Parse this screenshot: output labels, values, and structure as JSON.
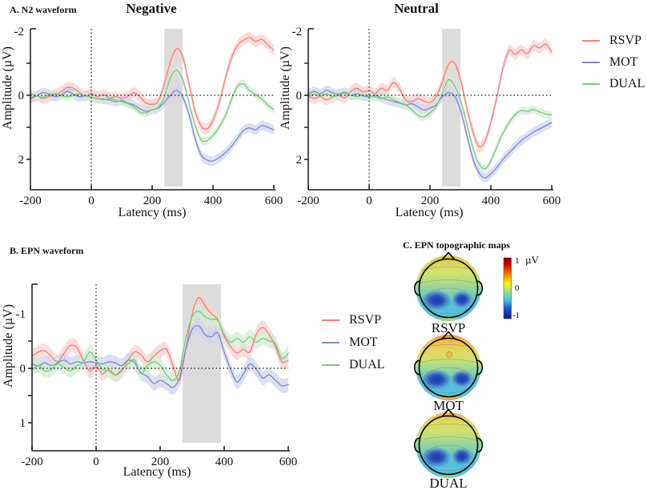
{
  "panel_a": {
    "label": "A. N2 waveform",
    "negative_title": "Negative",
    "neutral_title": "Neutral",
    "ylabel": "Amplitude (µV)",
    "xlabel": "Latency (ms)"
  },
  "panel_b": {
    "label": "B. EPN waveform",
    "ylabel": "Amplitude (µV)",
    "xlabel": "Latency (ms)"
  },
  "panel_c": {
    "label": "C. EPN topographic maps",
    "maps": [
      "RSVP",
      "MOT",
      "DUAL"
    ],
    "colorbar": {
      "max_label": "1",
      "zero_label": "0",
      "min_label": "-1",
      "unit": "µV"
    }
  },
  "legend": {
    "entries": [
      {
        "label": "RSVP",
        "color": "#ee8181"
      },
      {
        "label": "MOT",
        "color": "#7f89c5"
      },
      {
        "label": "DUAL",
        "color": "#83c383"
      }
    ]
  },
  "colors": {
    "axis": "#1a1a1a",
    "shade": "#dcdcdc",
    "series_styles": {
      "RSVP": {
        "line": "#ee8181",
        "band": "#f9d0d0"
      },
      "MOT": {
        "line": "#7f89c5",
        "band": "#d0d4ee"
      },
      "DUAL": {
        "line": "#83c383",
        "band": "#d3ecd3"
      }
    }
  },
  "chart_data": [
    {
      "type": "line",
      "title": "Negative",
      "xlabel": "Latency (ms)",
      "ylabel": "Amplitude (µV)",
      "x_ticks": [
        -200,
        0,
        200,
        400,
        600
      ],
      "y_ticks": [
        -2,
        0,
        2
      ],
      "y_minor_ticks": [
        -1,
        1
      ],
      "xlim": [
        -200,
        600
      ],
      "ylim": [
        -2,
        2
      ],
      "y_axis_inverted": true,
      "shade_ms": [
        240,
        300
      ],
      "x_ms": [
        -200,
        -180,
        -160,
        -140,
        -120,
        -100,
        -80,
        -60,
        -40,
        -20,
        0,
        20,
        40,
        60,
        80,
        100,
        120,
        140,
        160,
        180,
        200,
        220,
        240,
        260,
        280,
        300,
        320,
        340,
        360,
        380,
        400,
        420,
        440,
        460,
        480,
        500,
        520,
        540,
        560,
        580,
        600
      ],
      "series": [
        {
          "name": "RSVP",
          "sem": 0.17,
          "values": [
            0.08,
            0.02,
            0.1,
            0.05,
            -0.02,
            -0.1,
            -0.24,
            -0.22,
            -0.1,
            0.02,
            -0.05,
            0.04,
            -0.02,
            0.08,
            0.04,
            0.1,
            0.03,
            -0.08,
            0.06,
            0.24,
            0.28,
            0.18,
            -0.35,
            -1.05,
            -1.45,
            -1.22,
            -0.4,
            0.45,
            0.95,
            1.05,
            0.78,
            0.25,
            -0.5,
            -1.15,
            -1.55,
            -1.72,
            -1.8,
            -1.68,
            -1.75,
            -1.58,
            -1.4
          ]
        },
        {
          "name": "MOT",
          "sem": 0.15,
          "values": [
            0.1,
            0.02,
            -0.08,
            -0.04,
            0.04,
            0.0,
            -0.12,
            -0.04,
            0.05,
            0.02,
            0.06,
            0.1,
            0.12,
            0.15,
            0.2,
            0.16,
            0.24,
            0.3,
            0.42,
            0.5,
            0.45,
            0.4,
            0.22,
            0.0,
            -0.15,
            0.05,
            0.55,
            1.3,
            1.85,
            2.02,
            2.05,
            1.95,
            1.8,
            1.6,
            1.35,
            1.1,
            1.02,
            1.08,
            0.95,
            1.0,
            1.08
          ]
        },
        {
          "name": "DUAL",
          "sem": 0.12,
          "values": [
            -0.04,
            0.02,
            0.06,
            0.0,
            -0.05,
            0.0,
            0.05,
            0.0,
            -0.04,
            0.02,
            0.06,
            0.1,
            0.14,
            0.1,
            0.15,
            0.2,
            0.26,
            0.36,
            0.52,
            0.55,
            0.45,
            0.38,
            0.05,
            -0.55,
            -0.78,
            -0.5,
            0.2,
            0.9,
            1.38,
            1.42,
            1.25,
            1.0,
            0.65,
            0.15,
            -0.28,
            -0.35,
            -0.15,
            -0.02,
            0.12,
            0.3,
            0.45
          ]
        }
      ]
    },
    {
      "type": "line",
      "title": "Neutral",
      "xlabel": "Latency (ms)",
      "ylabel": "Amplitude (µV)",
      "x_ticks": [
        -200,
        0,
        200,
        400,
        600
      ],
      "y_ticks": [
        -2,
        0,
        2
      ],
      "y_minor_ticks": [
        -1,
        1
      ],
      "xlim": [
        -200,
        600
      ],
      "ylim": [
        -2,
        2
      ],
      "y_axis_inverted": true,
      "shade_ms": [
        240,
        300
      ],
      "x_ms": [
        -200,
        -180,
        -160,
        -140,
        -120,
        -100,
        -80,
        -60,
        -40,
        -20,
        0,
        20,
        40,
        60,
        80,
        100,
        120,
        140,
        160,
        180,
        200,
        220,
        240,
        260,
        280,
        300,
        320,
        340,
        360,
        380,
        400,
        420,
        440,
        460,
        480,
        500,
        520,
        540,
        560,
        580,
        600
      ],
      "series": [
        {
          "name": "RSVP",
          "sem": 0.17,
          "values": [
            0.02,
            0.1,
            0.04,
            0.14,
            0.05,
            0.0,
            0.08,
            -0.12,
            -0.22,
            -0.1,
            -0.15,
            -0.05,
            -0.22,
            -0.15,
            -0.4,
            -0.2,
            0.15,
            0.2,
            0.1,
            0.18,
            0.22,
            0.05,
            -0.4,
            -0.95,
            -1.02,
            -0.5,
            0.35,
            1.1,
            1.6,
            1.45,
            0.85,
            0.05,
            -0.85,
            -1.4,
            -1.28,
            -1.42,
            -1.3,
            -1.55,
            -1.48,
            -1.6,
            -1.35
          ]
        },
        {
          "name": "MOT",
          "sem": 0.15,
          "values": [
            -0.05,
            -0.12,
            -0.05,
            -0.15,
            -0.08,
            -0.04,
            -0.1,
            0.0,
            -0.05,
            0.02,
            0.05,
            0.0,
            0.08,
            0.14,
            0.2,
            0.24,
            0.3,
            0.26,
            0.36,
            0.46,
            0.4,
            0.3,
            0.05,
            -0.08,
            0.02,
            0.45,
            1.2,
            1.95,
            2.4,
            2.58,
            2.45,
            2.25,
            2.0,
            1.8,
            1.6,
            1.42,
            1.28,
            1.15,
            1.05,
            0.95,
            0.85
          ]
        },
        {
          "name": "DUAL",
          "sem": 0.12,
          "values": [
            0.02,
            -0.04,
            0.02,
            -0.05,
            0.04,
            0.0,
            -0.05,
            0.0,
            0.04,
            0.0,
            0.02,
            0.05,
            0.1,
            0.05,
            0.14,
            0.22,
            0.3,
            0.45,
            0.62,
            0.68,
            0.55,
            0.35,
            -0.05,
            -0.48,
            -0.3,
            0.15,
            0.85,
            1.6,
            2.12,
            2.3,
            2.05,
            1.6,
            1.18,
            0.85,
            0.6,
            0.48,
            0.5,
            0.45,
            0.52,
            0.58,
            0.62
          ]
        }
      ]
    },
    {
      "type": "line",
      "title": "EPN",
      "xlabel": "Latency (ms)",
      "ylabel": "Amplitude (µV)",
      "x_ticks": [
        -200,
        0,
        200,
        400,
        600
      ],
      "y_ticks": [
        -1,
        0,
        1
      ],
      "y_minor_ticks": [
        -0.5,
        0.5
      ],
      "xlim": [
        -200,
        600
      ],
      "ylim": [
        -1,
        1
      ],
      "y_axis_inverted": true,
      "shade_ms": [
        270,
        390
      ],
      "x_ms": [
        -200,
        -180,
        -160,
        -140,
        -120,
        -100,
        -80,
        -60,
        -40,
        -20,
        0,
        20,
        40,
        60,
        80,
        100,
        120,
        140,
        160,
        180,
        200,
        220,
        240,
        260,
        280,
        300,
        320,
        340,
        360,
        380,
        400,
        420,
        440,
        460,
        480,
        500,
        520,
        540,
        560,
        580,
        600
      ],
      "series": [
        {
          "name": "RSVP",
          "sem": 0.13,
          "values": [
            -0.22,
            -0.3,
            -0.32,
            -0.22,
            -0.12,
            -0.28,
            -0.42,
            -0.38,
            -0.15,
            0.05,
            -0.05,
            0.1,
            0.02,
            0.12,
            0.05,
            -0.15,
            -0.3,
            -0.25,
            -0.12,
            -0.22,
            -0.32,
            -0.35,
            -0.05,
            0.22,
            -0.35,
            -1.0,
            -1.3,
            -1.15,
            -1.0,
            -0.9,
            -0.58,
            -0.4,
            -0.28,
            -0.35,
            -0.3,
            -0.62,
            -0.75,
            -0.62,
            -0.4,
            -0.12,
            -0.15
          ]
        },
        {
          "name": "MOT",
          "sem": 0.13,
          "values": [
            -0.08,
            -0.05,
            -0.1,
            -0.05,
            -0.1,
            -0.15,
            -0.08,
            -0.12,
            -0.1,
            -0.12,
            -0.1,
            -0.08,
            -0.12,
            -0.1,
            -0.05,
            -0.15,
            -0.1,
            0.08,
            0.15,
            0.28,
            0.22,
            0.28,
            0.35,
            0.18,
            -0.35,
            -0.72,
            -0.78,
            -0.62,
            -0.58,
            -0.65,
            -0.3,
            0.02,
            0.25,
            0.1,
            -0.08,
            0.02,
            0.18,
            0.12,
            0.22,
            0.32,
            0.3
          ]
        },
        {
          "name": "DUAL",
          "sem": 0.13,
          "values": [
            0.02,
            -0.05,
            0.05,
            0.02,
            -0.08,
            -0.02,
            0.05,
            -0.05,
            -0.1,
            -0.3,
            -0.15,
            0.02,
            0.05,
            0.12,
            0.02,
            -0.08,
            -0.15,
            0.1,
            -0.05,
            -0.12,
            -0.05,
            0.12,
            0.22,
            0.05,
            -0.55,
            -0.95,
            -1.05,
            -0.95,
            -0.9,
            -0.88,
            -0.62,
            -0.48,
            -0.55,
            -0.48,
            -0.58,
            -0.48,
            -0.55,
            -0.5,
            -0.45,
            -0.18,
            -0.28
          ]
        }
      ]
    },
    {
      "type": "topomap",
      "title": "EPN topographic maps",
      "maps": [
        "RSVP",
        "MOT",
        "DUAL"
      ],
      "colorbar": {
        "min": -1,
        "max": 1,
        "unit": "µV"
      }
    }
  ]
}
